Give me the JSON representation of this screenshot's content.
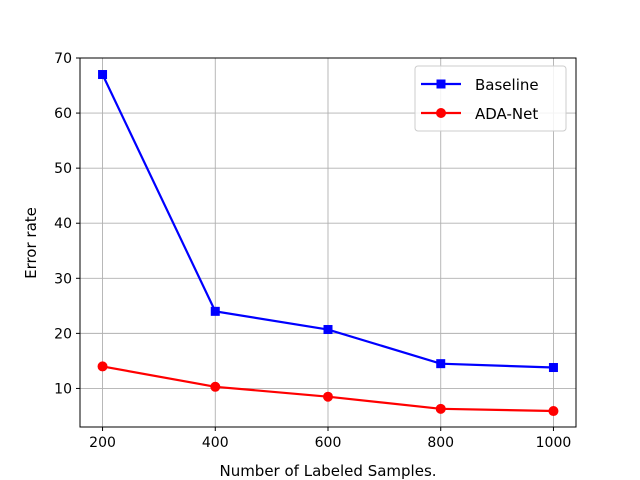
{
  "chart_data": {
    "type": "line",
    "xlabel": "Number of Labeled Samples.",
    "ylabel": "Error rate",
    "x": [
      200,
      400,
      600,
      800,
      1000
    ],
    "xticks": [
      200,
      400,
      600,
      800,
      1000
    ],
    "yticks": [
      10,
      20,
      30,
      40,
      50,
      60,
      70
    ],
    "xlim": [
      160,
      1040
    ],
    "ylim": [
      3,
      70
    ],
    "grid": true,
    "legend_position": "top-right",
    "series": [
      {
        "name": "Baseline",
        "values": [
          67,
          24,
          20.7,
          14.5,
          13.8
        ],
        "color": "#0000ff",
        "marker": "square"
      },
      {
        "name": "ADA-Net",
        "values": [
          14,
          10.3,
          8.5,
          6.3,
          5.9
        ],
        "color": "#ff0000",
        "marker": "circle"
      }
    ]
  }
}
